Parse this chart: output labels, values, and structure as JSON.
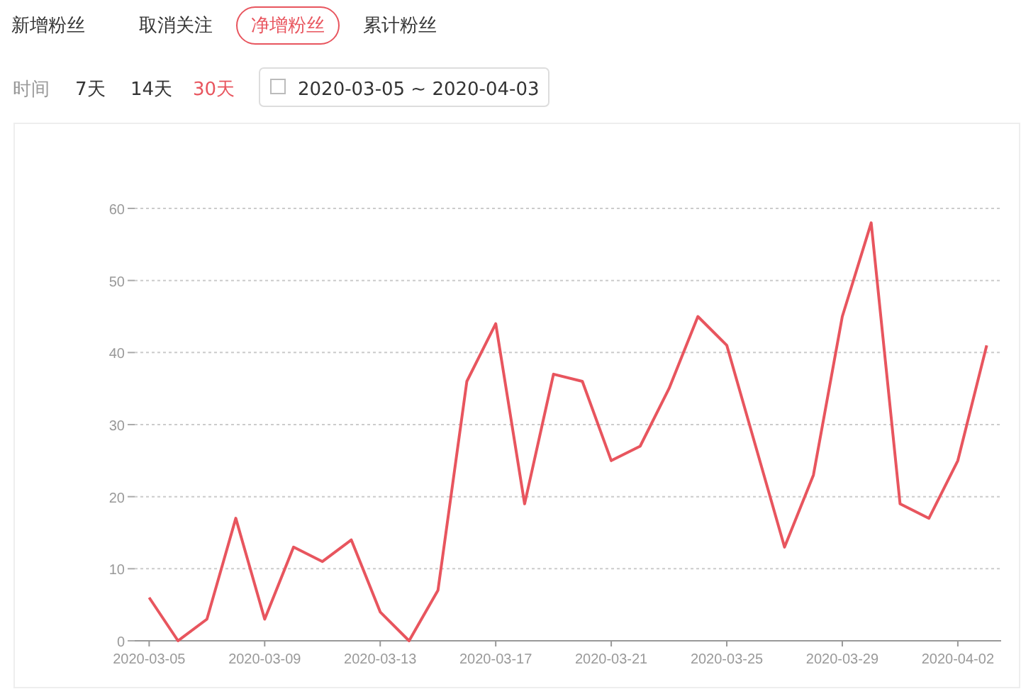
{
  "chart_data": {
    "type": "line",
    "annotations": [
      "新增粉丝",
      "取消关注",
      "净增粉丝",
      "累计粉丝",
      "时间",
      "7天",
      "14天",
      "30天",
      "2020-03-05 ~ 2020-04-03"
    ],
    "categories": [
      "2020-03-05",
      null,
      null,
      null,
      "2020-03-09",
      null,
      null,
      null,
      "2020-03-13",
      null,
      null,
      null,
      "2020-03-17",
      null,
      null,
      null,
      "2020-03-21",
      null,
      null,
      null,
      "2020-03-25",
      null,
      null,
      null,
      "2020-03-29",
      null,
      null,
      null,
      "2020-04-02",
      null
    ],
    "series": [
      {
        "color": "#e8555e",
        "values": [
          6,
          0,
          3,
          17,
          3,
          13,
          11,
          14,
          4,
          0,
          7,
          36,
          44,
          19,
          37,
          36,
          25,
          27,
          35,
          45,
          41,
          27,
          13,
          23,
          45,
          58,
          19,
          17,
          25,
          41
        ]
      }
    ],
    "ylim": [
      0,
      60
    ],
    "yticks": [
      0,
      10,
      20,
      30,
      40,
      50,
      60
    ],
    "grid": "y",
    "line_style": "solid"
  }
}
